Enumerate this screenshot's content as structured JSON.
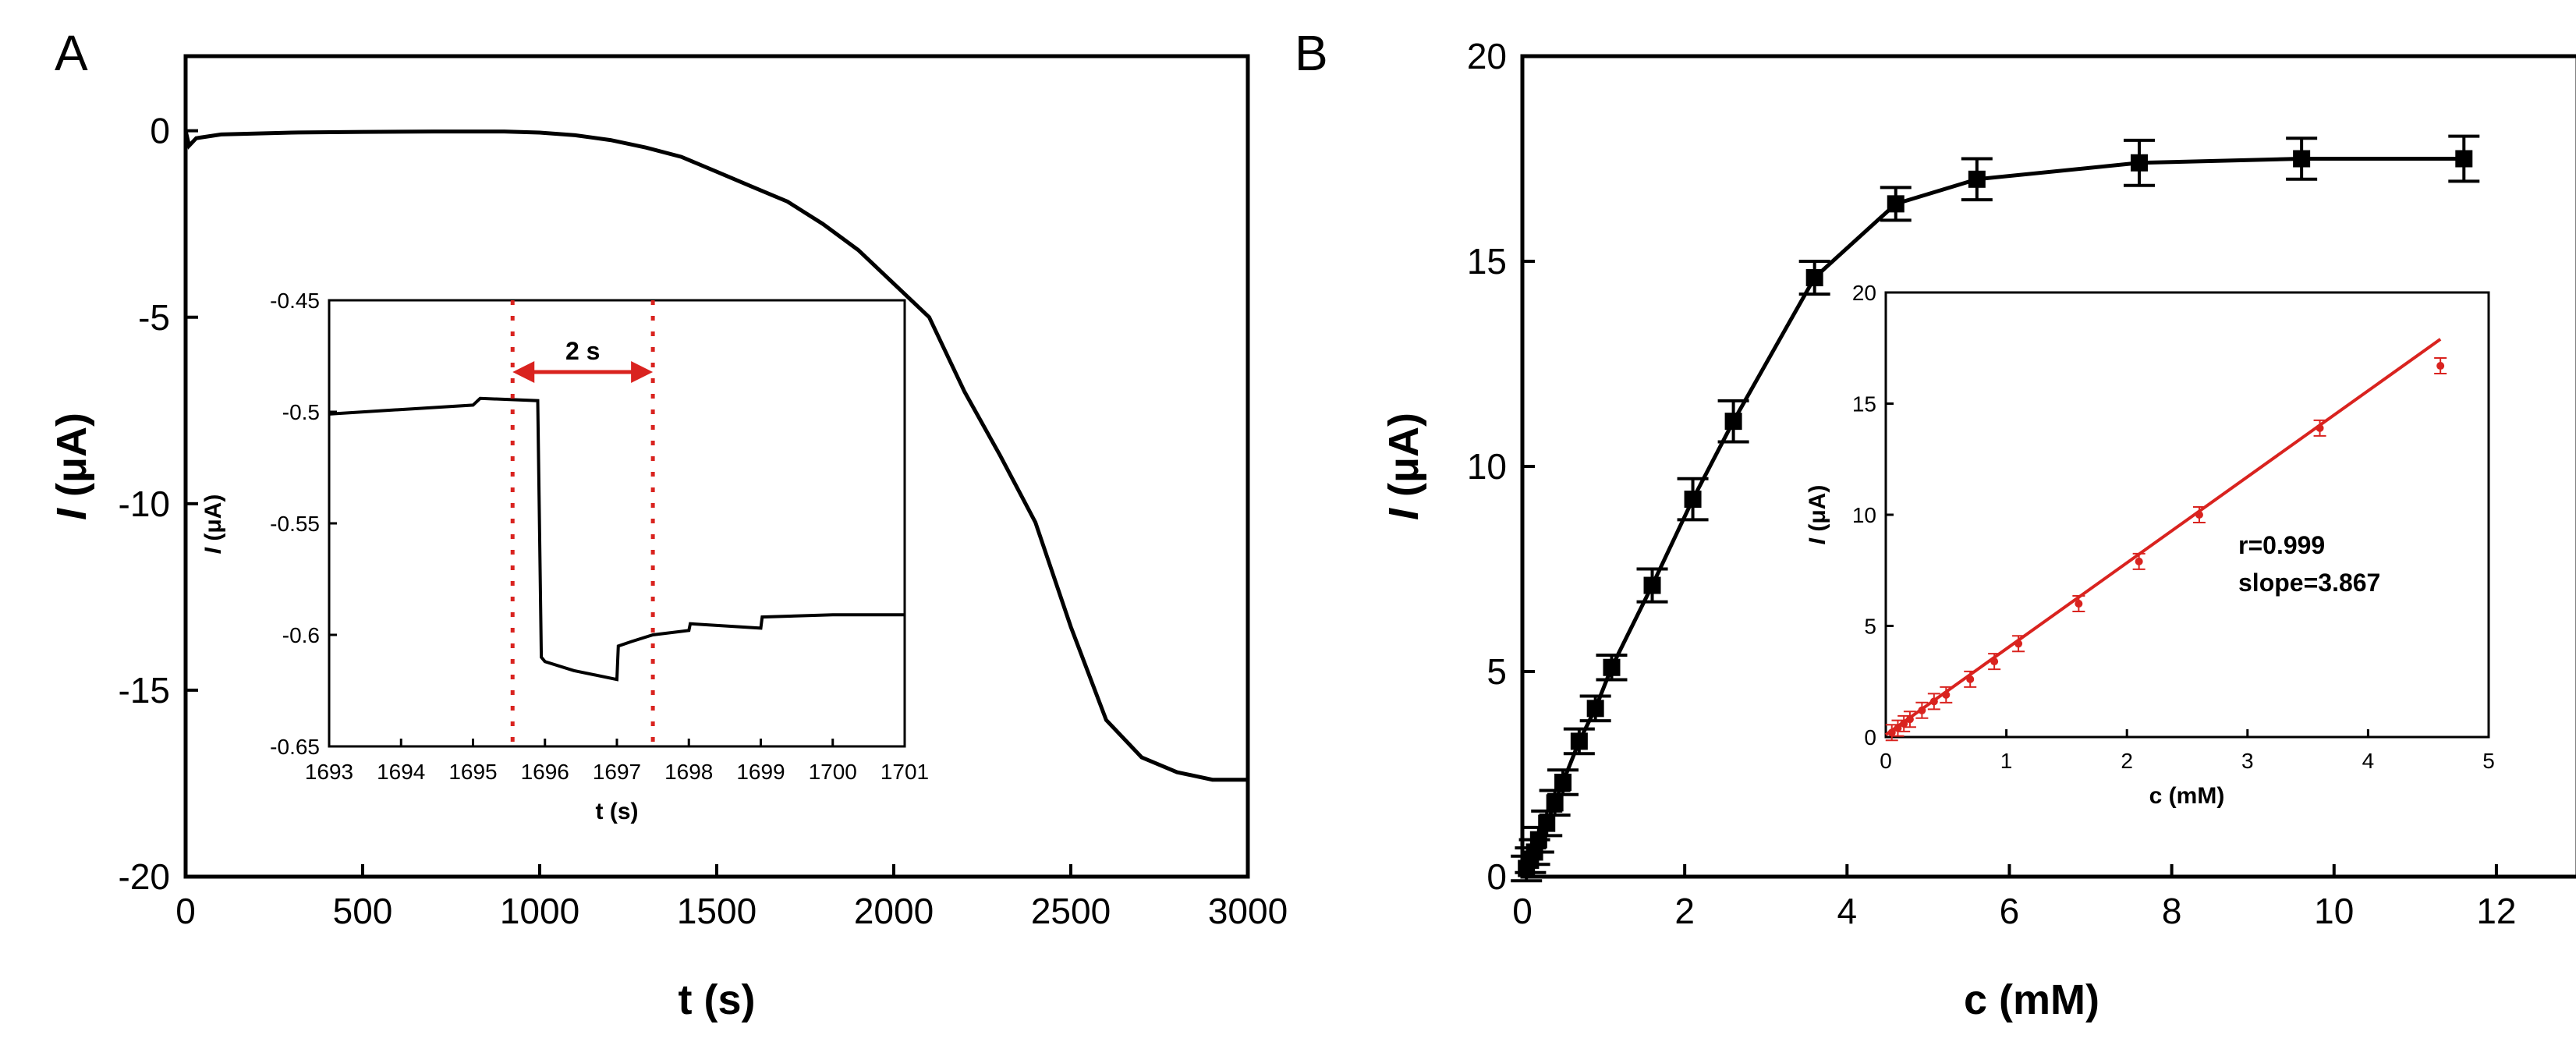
{
  "chart_data": [
    {
      "panel_label": "A",
      "type": "line",
      "xlabel": "t (s)",
      "ylabel_italic": "I",
      "ylabel_rest": " (μA)",
      "xlim": [
        0,
        3000
      ],
      "ylim": [
        -20,
        2
      ],
      "xticks": [
        0,
        500,
        1000,
        1500,
        2000,
        2500,
        3000
      ],
      "yticks": [
        0,
        -5,
        -10,
        -15,
        -20
      ],
      "series": [
        {
          "x": [
            0,
            10,
            30,
            100,
            300,
            500,
            700,
            900,
            1000,
            1100,
            1200,
            1300,
            1400,
            1500,
            1600,
            1700,
            1800,
            1900,
            2000,
            2100,
            2200,
            2300,
            2400,
            2500,
            2600,
            2700,
            2800,
            2900,
            3000
          ],
          "y": [
            0,
            -0.4,
            -0.2,
            -0.1,
            -0.05,
            -0.03,
            -0.02,
            -0.02,
            -0.05,
            -0.12,
            -0.25,
            -0.45,
            -0.7,
            -1.1,
            -1.5,
            -1.9,
            -2.5,
            -3.2,
            -4.1,
            -5.0,
            -7.0,
            -8.7,
            -10.5,
            -13.3,
            -15.8,
            -16.8,
            -17.2,
            -17.4,
            -17.4
          ]
        }
      ],
      "inset": {
        "type": "line",
        "xlabel": "t (s)",
        "ylabel_italic": "I",
        "ylabel_rest": " (μA)",
        "xlim": [
          1693,
          1701
        ],
        "ylim": [
          -0.65,
          -0.45
        ],
        "xticks": [
          1693,
          1694,
          1695,
          1696,
          1697,
          1698,
          1699,
          1700,
          1701
        ],
        "yticks": [
          -0.45,
          -0.5,
          -0.55,
          -0.6,
          -0.65
        ],
        "x": [
          1693,
          1694,
          1695,
          1695.1,
          1695.9,
          1695.95,
          1696.0,
          1696.4,
          1697.0,
          1697.02,
          1697.2,
          1697.5,
          1698.0,
          1698.02,
          1699.0,
          1699.02,
          1700,
          1701
        ],
        "y": [
          -0.501,
          -0.499,
          -0.497,
          -0.494,
          -0.495,
          -0.61,
          -0.612,
          -0.616,
          -0.62,
          -0.605,
          -0.603,
          -0.6,
          -0.598,
          -0.595,
          -0.597,
          -0.592,
          -0.591,
          -0.591
        ],
        "markers": [
          1695.55,
          1697.5
        ],
        "annotation": "2 s"
      }
    },
    {
      "panel_label": "B",
      "type": "line",
      "xlabel": "c (mM)",
      "ylabel_italic": "I",
      "ylabel_rest": " (μA)",
      "xlim": [
        0,
        13
      ],
      "ylim": [
        0,
        20
      ],
      "xticks": [
        0,
        2,
        4,
        6,
        8,
        10,
        12
      ],
      "yticks": [
        0,
        5,
        10,
        15,
        20
      ],
      "series": [
        {
          "x": [
            0.05,
            0.1,
            0.15,
            0.2,
            0.3,
            0.4,
            0.5,
            0.7,
            0.9,
            1.1,
            1.6,
            2.1,
            2.6,
            3.6,
            4.6,
            5.6,
            7.6,
            9.6,
            11.6
          ],
          "y": [
            0.2,
            0.4,
            0.6,
            0.9,
            1.3,
            1.8,
            2.3,
            3.3,
            4.1,
            5.1,
            7.1,
            9.2,
            11.1,
            14.6,
            16.4,
            17.0,
            17.4,
            17.5,
            17.5
          ],
          "err": [
            0.3,
            0.3,
            0.3,
            0.3,
            0.3,
            0.3,
            0.3,
            0.3,
            0.3,
            0.3,
            0.4,
            0.5,
            0.5,
            0.4,
            0.4,
            0.5,
            0.55,
            0.5,
            0.55
          ]
        }
      ],
      "inset": {
        "type": "scatter",
        "xlabel": "c (mM)",
        "ylabel_italic": "I",
        "ylabel_rest": " (μA)",
        "xlim": [
          0,
          5
        ],
        "ylim": [
          0,
          20
        ],
        "xticks": [
          0,
          1,
          2,
          3,
          4,
          5
        ],
        "yticks": [
          0,
          5,
          10,
          15,
          20
        ],
        "x": [
          0.05,
          0.1,
          0.15,
          0.2,
          0.3,
          0.4,
          0.5,
          0.7,
          0.9,
          1.1,
          1.6,
          2.1,
          2.6,
          3.6,
          4.6
        ],
        "y": [
          0.2,
          0.4,
          0.6,
          0.8,
          1.2,
          1.6,
          1.9,
          2.6,
          3.4,
          4.2,
          6.0,
          7.9,
          10.0,
          13.9,
          16.7
        ],
        "fit": {
          "x": [
            0,
            4.6
          ],
          "y": [
            0.1,
            17.9
          ]
        },
        "annotation_r": "r=0.999",
        "annotation_slope": "slope=3.867"
      }
    }
  ]
}
